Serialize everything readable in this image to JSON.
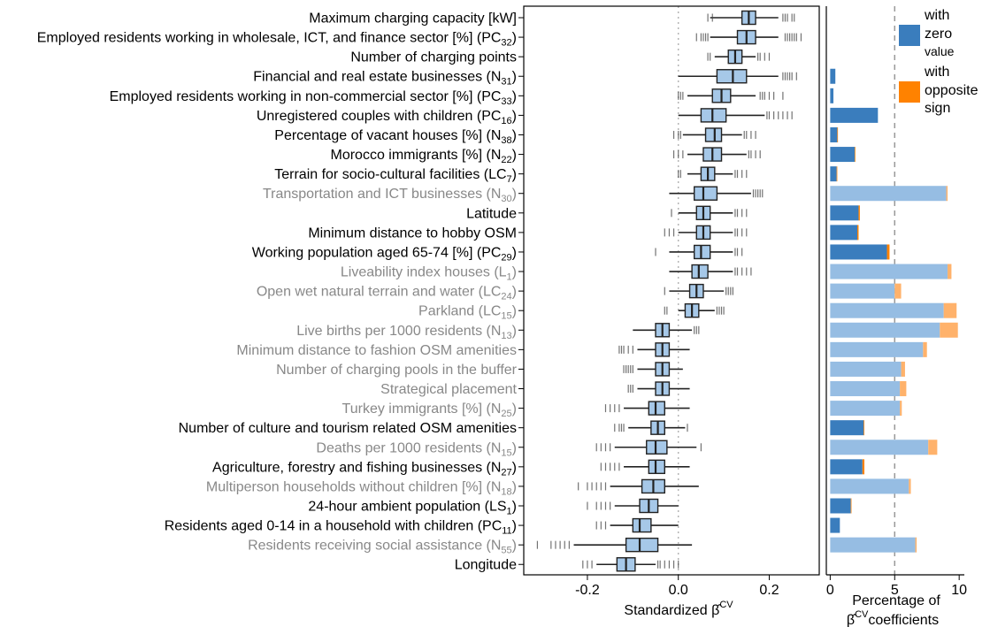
{
  "chart_data": {
    "type": "boxplot",
    "panels": [
      {
        "name": "coefficients",
        "xlabel": "Standardized  β̂",
        "xlabel_superscript": "CV",
        "xlim": [
          -0.34,
          0.31
        ],
        "xticks": [
          -0.2,
          0.0,
          0.2
        ],
        "xtick_labels": [
          "-0.2",
          "0.0",
          "0.2"
        ],
        "reference_line": 0.0
      },
      {
        "name": "percentage",
        "xlabel_line1": "Percentage of",
        "xlabel_line2_base": "β̂",
        "xlabel_line2_superscript": "CV",
        "xlabel_line2_suffix": "coefficients",
        "xlim": [
          -0.3,
          10.4
        ],
        "xticks": [
          0,
          5,
          10
        ],
        "xtick_labels": [
          "0",
          "5",
          "10"
        ],
        "reference_line": 5
      }
    ],
    "legend": {
      "position": "top-right",
      "items": [
        {
          "line1": "with",
          "line2": "zero",
          "line3": "value",
          "color": "#3a7dbd"
        },
        {
          "line1": "with",
          "line2": "opposite",
          "line3": "sign",
          "color": "#ff8200"
        }
      ]
    },
    "colors": {
      "box_fill": "#a6c8e8",
      "box_stroke": "#222222",
      "bar_significant": "#3a7dbd",
      "bar_nonsignificant": "#96bde3",
      "bar_opposite_dark": "#ff8200",
      "bar_opposite_light": "#ffb26b",
      "label_significant": "#000000",
      "label_nonsignificant": "#888888"
    },
    "variables": [
      {
        "pre": "Maximum charging capacity [kW]",
        "sub": "",
        "post": "",
        "significant": true,
        "wlo": 0.07,
        "q1": 0.14,
        "med": 0.155,
        "q3": 0.17,
        "whi": 0.22,
        "outlo": [
          0.065,
          0.075
        ],
        "outhi": [
          0.23,
          0.235,
          0.24,
          0.25,
          0.255
        ],
        "zero": 0.0,
        "opp": 0.0
      },
      {
        "pre": "Employed residents working in wholesale, ICT, and finance sector [%] (PC",
        "sub": "32",
        "post": ")",
        "significant": true,
        "wlo": 0.07,
        "q1": 0.13,
        "med": 0.15,
        "q3": 0.17,
        "whi": 0.22,
        "outlo": [
          0.04,
          0.05,
          0.055,
          0.06,
          0.065
        ],
        "outhi": [
          0.235,
          0.24,
          0.245,
          0.25,
          0.255,
          0.26,
          0.27
        ],
        "zero": 0.0,
        "opp": 0.0
      },
      {
        "pre": "Number of charging points",
        "sub": "",
        "post": "",
        "significant": true,
        "wlo": 0.08,
        "q1": 0.11,
        "med": 0.125,
        "q3": 0.14,
        "whi": 0.17,
        "outlo": [
          0.065,
          0.07
        ],
        "outhi": [
          0.175,
          0.18,
          0.19,
          0.2
        ],
        "zero": 0.0,
        "opp": 0.0
      },
      {
        "pre": "Financial and real estate businesses (N",
        "sub": "31",
        "post": ")",
        "significant": true,
        "wlo": 0.0,
        "q1": 0.085,
        "med": 0.12,
        "q3": 0.15,
        "whi": 0.22,
        "outlo": [],
        "outhi": [
          0.23,
          0.235,
          0.24,
          0.245,
          0.25,
          0.26
        ],
        "zero": 0.4,
        "opp": 0.0
      },
      {
        "pre": "Employed residents working in non-commercial sector [%] (PC",
        "sub": "33",
        "post": ")",
        "significant": true,
        "wlo": 0.02,
        "q1": 0.075,
        "med": 0.095,
        "q3": 0.115,
        "whi": 0.17,
        "outlo": [
          0.0,
          0.005,
          0.01
        ],
        "outhi": [
          0.18,
          0.185,
          0.19,
          0.2,
          0.21,
          0.23
        ],
        "zero": 0.25,
        "opp": 0.0
      },
      {
        "pre": "Unregistered couples with children (PC",
        "sub": "16",
        "post": ")",
        "significant": true,
        "wlo": 0.0,
        "q1": 0.05,
        "med": 0.075,
        "q3": 0.105,
        "whi": 0.19,
        "outlo": [],
        "outhi": [
          0.195,
          0.2,
          0.21,
          0.22,
          0.23,
          0.24,
          0.25
        ],
        "zero": 3.7,
        "opp": 0.0
      },
      {
        "pre": "Percentage of vacant houses [%] (N",
        "sub": "38",
        "post": ")",
        "significant": true,
        "wlo": 0.01,
        "q1": 0.06,
        "med": 0.08,
        "q3": 0.095,
        "whi": 0.14,
        "outlo": [
          -0.01,
          0.0,
          0.005
        ],
        "outhi": [
          0.145,
          0.15,
          0.16,
          0.17
        ],
        "zero": 0.55,
        "opp": 0.05
      },
      {
        "pre": "Morocco immigrants [%] (N",
        "sub": "22",
        "post": ")",
        "significant": true,
        "wlo": 0.02,
        "q1": 0.055,
        "med": 0.075,
        "q3": 0.095,
        "whi": 0.15,
        "outlo": [
          -0.01,
          0.0,
          0.01
        ],
        "outhi": [
          0.155,
          0.16,
          0.17,
          0.18
        ],
        "zero": 1.9,
        "opp": 0.05
      },
      {
        "pre": "Terrain for socio-cultural facilities (LC",
        "sub": "7",
        "post": ")",
        "significant": true,
        "wlo": 0.02,
        "q1": 0.05,
        "med": 0.065,
        "q3": 0.08,
        "whi": 0.12,
        "outlo": [
          0.0,
          0.005
        ],
        "outhi": [
          0.125,
          0.13,
          0.14,
          0.15
        ],
        "zero": 0.5,
        "opp": 0.05
      },
      {
        "pre": "Transportation and ICT businesses (N",
        "sub": "30",
        "post": ")",
        "significant": false,
        "wlo": -0.02,
        "q1": 0.035,
        "med": 0.055,
        "q3": 0.085,
        "whi": 0.16,
        "outlo": [],
        "outhi": [
          0.165,
          0.17,
          0.175,
          0.18,
          0.185
        ],
        "zero": 9.0,
        "opp": 0.1
      },
      {
        "pre": "Latitude",
        "sub": "",
        "post": "",
        "significant": true,
        "wlo": 0.0,
        "q1": 0.04,
        "med": 0.055,
        "q3": 0.07,
        "whi": 0.12,
        "outlo": [
          -0.015
        ],
        "outhi": [
          0.125,
          0.13,
          0.14,
          0.15
        ],
        "zero": 2.2,
        "opp": 0.1
      },
      {
        "pre": "Minimum distance to hobby OSM",
        "sub": "",
        "post": "",
        "significant": true,
        "wlo": 0.0,
        "q1": 0.04,
        "med": 0.055,
        "q3": 0.07,
        "whi": 0.12,
        "outlo": [
          -0.03,
          -0.02,
          -0.01
        ],
        "outhi": [
          0.125,
          0.13,
          0.14,
          0.15
        ],
        "zero": 2.1,
        "opp": 0.1
      },
      {
        "pre": "Working population aged 65-74 [%] (PC",
        "sub": "29",
        "post": ")",
        "significant": true,
        "wlo": -0.02,
        "q1": 0.035,
        "med": 0.05,
        "q3": 0.07,
        "whi": 0.12,
        "outlo": [
          -0.05
        ],
        "outhi": [
          0.125,
          0.13,
          0.14
        ],
        "zero": 4.4,
        "opp": 0.2
      },
      {
        "pre": "Liveability index houses (L",
        "sub": "1",
        "post": ")",
        "significant": false,
        "wlo": -0.02,
        "q1": 0.03,
        "med": 0.045,
        "q3": 0.065,
        "whi": 0.12,
        "outlo": [],
        "outhi": [
          0.125,
          0.13,
          0.14,
          0.15,
          0.16
        ],
        "zero": 9.1,
        "opp": 0.3
      },
      {
        "pre": "Open wet natural terrain and water (LC",
        "sub": "24",
        "post": ")",
        "significant": false,
        "wlo": -0.02,
        "q1": 0.025,
        "med": 0.04,
        "q3": 0.055,
        "whi": 0.1,
        "outlo": [
          -0.03
        ],
        "outhi": [
          0.105,
          0.11,
          0.115,
          0.12
        ],
        "zero": 5.0,
        "opp": 0.5
      },
      {
        "pre": "Parkland (LC",
        "sub": "15",
        "post": ")",
        "significant": false,
        "wlo": 0.0,
        "q1": 0.015,
        "med": 0.03,
        "q3": 0.045,
        "whi": 0.08,
        "outlo": [
          -0.03,
          -0.025
        ],
        "outhi": [
          0.085,
          0.09,
          0.095,
          0.1
        ],
        "zero": 8.8,
        "opp": 1.0
      },
      {
        "pre": "Live births per 1000 residents (N",
        "sub": "13",
        "post": ")",
        "significant": false,
        "wlo": -0.1,
        "q1": -0.05,
        "med": -0.035,
        "q3": -0.02,
        "whi": 0.03,
        "outlo": [],
        "outhi": [
          0.035,
          0.04,
          0.045
        ],
        "zero": 8.5,
        "opp": 1.4
      },
      {
        "pre": "Minimum distance to fashion OSM amenities",
        "sub": "",
        "post": "",
        "significant": false,
        "wlo": -0.09,
        "q1": -0.05,
        "med": -0.035,
        "q3": -0.02,
        "whi": 0.025,
        "outlo": [
          -0.13,
          -0.125,
          -0.12,
          -0.11,
          -0.1
        ],
        "outhi": [],
        "zero": 7.2,
        "opp": 0.3
      },
      {
        "pre": "Number of charging pools in the buffer",
        "sub": "",
        "post": "",
        "significant": false,
        "wlo": -0.09,
        "q1": -0.05,
        "med": -0.035,
        "q3": -0.02,
        "whi": 0.01,
        "outlo": [
          -0.12,
          -0.115,
          -0.11,
          -0.105,
          -0.1
        ],
        "outhi": [],
        "zero": 5.5,
        "opp": 0.3
      },
      {
        "pre": "Strategical placement",
        "sub": "",
        "post": "",
        "significant": false,
        "wlo": -0.09,
        "q1": -0.05,
        "med": -0.035,
        "q3": -0.02,
        "whi": 0.025,
        "outlo": [
          -0.11,
          -0.105,
          -0.1
        ],
        "outhi": [],
        "zero": 5.4,
        "opp": 0.5
      },
      {
        "pre": "Turkey immigrants [%] (N",
        "sub": "25",
        "post": ")",
        "significant": false,
        "wlo": -0.12,
        "q1": -0.065,
        "med": -0.05,
        "q3": -0.03,
        "whi": 0.025,
        "outlo": [
          -0.16,
          -0.15,
          -0.14,
          -0.13
        ],
        "outhi": [],
        "zero": 5.4,
        "opp": 0.15
      },
      {
        "pre": "Number of culture and tourism related OSM amenities",
        "sub": "",
        "post": "",
        "significant": true,
        "wlo": -0.11,
        "q1": -0.06,
        "med": -0.045,
        "q3": -0.03,
        "whi": 0.015,
        "outlo": [
          -0.14,
          -0.13,
          -0.125,
          -0.12
        ],
        "outhi": [
          0.02
        ],
        "zero": 2.6,
        "opp": 0.05
      },
      {
        "pre": "Deaths per 1000 residents (N",
        "sub": "15",
        "post": ")",
        "significant": false,
        "wlo": -0.14,
        "q1": -0.07,
        "med": -0.05,
        "q3": -0.025,
        "whi": 0.04,
        "outlo": [
          -0.18,
          -0.17,
          -0.16,
          -0.15
        ],
        "outhi": [
          0.05
        ],
        "zero": 7.6,
        "opp": 0.7
      },
      {
        "pre": "Agriculture, forestry and fishing businesses (N",
        "sub": "27",
        "post": ")",
        "significant": true,
        "wlo": -0.12,
        "q1": -0.065,
        "med": -0.05,
        "q3": -0.03,
        "whi": 0.025,
        "outlo": [
          -0.17,
          -0.16,
          -0.15,
          -0.14,
          -0.13
        ],
        "outhi": [],
        "zero": 2.5,
        "opp": 0.15
      },
      {
        "pre": "Multiperson households without children [%] (N",
        "sub": "18",
        "post": ")",
        "significant": false,
        "wlo": -0.15,
        "q1": -0.08,
        "med": -0.055,
        "q3": -0.03,
        "whi": 0.045,
        "outlo": [
          -0.22,
          -0.2,
          -0.19,
          -0.18,
          -0.17,
          -0.16
        ],
        "outhi": [],
        "zero": 6.1,
        "opp": 0.15
      },
      {
        "pre": "24-hour ambient population (LS",
        "sub": "1",
        "post": ")",
        "significant": true,
        "wlo": -0.14,
        "q1": -0.085,
        "med": -0.065,
        "q3": -0.045,
        "whi": 0.0,
        "outlo": [
          -0.2,
          -0.18,
          -0.17,
          -0.16,
          -0.15
        ],
        "outhi": [],
        "zero": 1.6,
        "opp": 0.05
      },
      {
        "pre": "Residents aged 0-14 in a household with children (PC",
        "sub": "11",
        "post": ")",
        "significant": true,
        "wlo": -0.15,
        "q1": -0.1,
        "med": -0.085,
        "q3": -0.06,
        "whi": 0.0,
        "outlo": [
          -0.18,
          -0.17,
          -0.16
        ],
        "outhi": [],
        "zero": 0.75,
        "opp": 0.0
      },
      {
        "pre": "Residents receiving social assistance (N",
        "sub": "55",
        "post": ")",
        "significant": false,
        "wlo": -0.23,
        "q1": -0.115,
        "med": -0.085,
        "q3": -0.045,
        "whi": 0.03,
        "outlo": [
          -0.31,
          -0.28,
          -0.27,
          -0.26,
          -0.25,
          -0.24
        ],
        "outhi": [],
        "zero": 6.6,
        "opp": 0.1
      },
      {
        "pre": "Longitude",
        "sub": "",
        "post": "",
        "significant": true,
        "wlo": -0.18,
        "q1": -0.135,
        "med": -0.115,
        "q3": -0.095,
        "whi": -0.05,
        "outlo": [
          -0.21,
          -0.2,
          -0.19
        ],
        "outhi": [
          -0.045,
          -0.04,
          -0.03,
          -0.02,
          -0.01,
          0.0
        ],
        "zero": 0.0,
        "opp": 0.0
      }
    ]
  }
}
